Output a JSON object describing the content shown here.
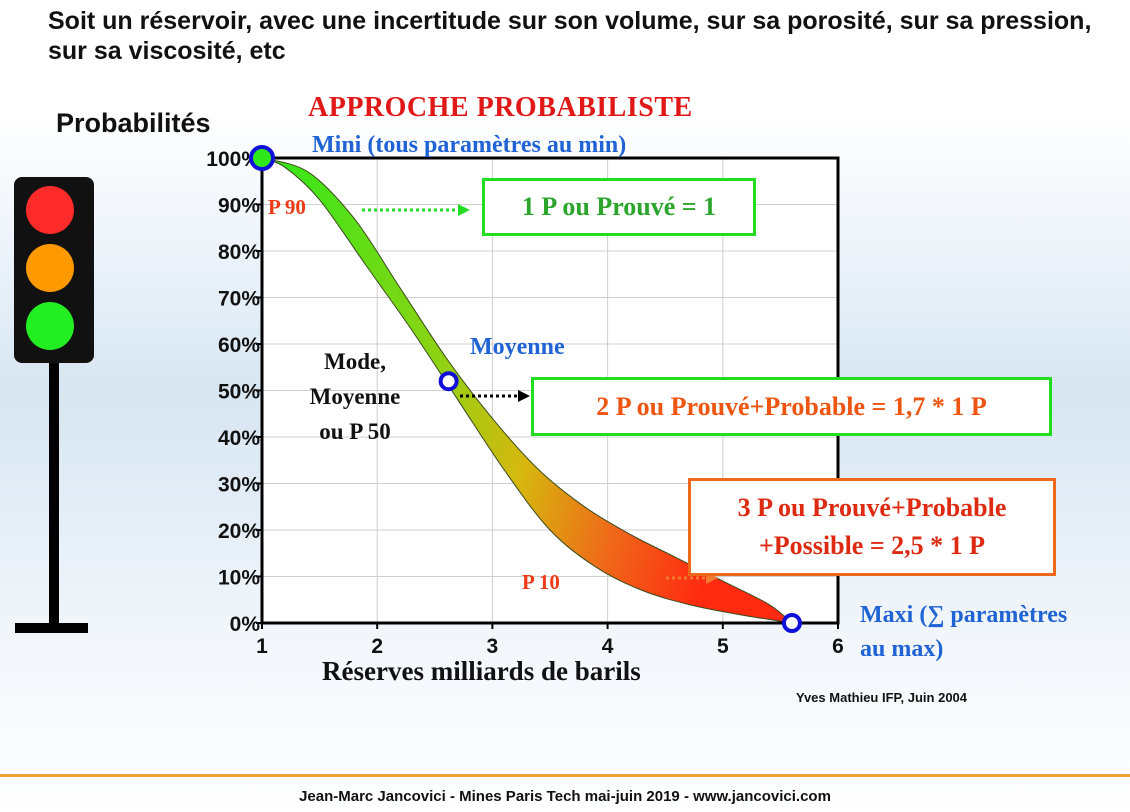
{
  "slide": {
    "heading": "Soit un réservoir, avec une incertitude sur son volume, sur sa porosité, sur sa pression, sur sa viscosité, etc",
    "approach_title": "APPROCHE PROBABILISTE",
    "credit": "Yves Mathieu IFP, Juin 2004",
    "footer": "Jean-Marc Jancovici - Mines Paris Tech mai-juin 2019 - www.jancovici.com",
    "colors": {
      "title_red": "#e01818",
      "label_blue": "#1f63d4",
      "green_box": "#22dd22",
      "orange_box": "#ee6a1a",
      "footer_line": "#f0a030"
    }
  },
  "traffic_light": {
    "icon": "traffic-light-icon",
    "lamps": [
      "#ff2a2a",
      "#ff9900",
      "#22ee22"
    ]
  },
  "annotations": {
    "mini": "Mini (tous paramètres au min)",
    "maxi_line1": "Maxi (∑ paramètres",
    "maxi_line2": "au max)",
    "moyenne": "Moyenne",
    "mode_line1": "Mode,",
    "mode_line2": "Moyenne",
    "mode_line3": "ou P 50",
    "p90": "P 90",
    "p10": "P 10"
  },
  "boxes": {
    "box1": "1 P ou Prouvé = 1",
    "box2": "2 P ou Prouvé+Probable = 1,7 * 1 P",
    "box3_line1": "3 P ou Prouvé+Probable",
    "box3_line2": "+Possible =  2,5 * 1 P"
  },
  "chart_data": {
    "type": "area",
    "ylabel": "Probabilités",
    "xlabel": "Réserves milliards de barils",
    "xlim": [
      1,
      6
    ],
    "ylim": [
      0,
      100
    ],
    "x_ticks": [
      "1",
      "2",
      "3",
      "4",
      "5",
      "6"
    ],
    "y_ticks": [
      "0%",
      "10%",
      "20%",
      "30%",
      "40%",
      "50%",
      "60%",
      "70%",
      "80%",
      "90%",
      "100%"
    ],
    "grid": true,
    "band_upper": {
      "x": [
        1.0,
        1.4,
        1.8,
        2.2,
        2.6,
        3.0,
        3.4,
        3.8,
        4.2,
        4.6,
        5.0,
        5.4,
        5.6
      ],
      "y": [
        100,
        97,
        87,
        72,
        57,
        44,
        33,
        25,
        19,
        14,
        9,
        4,
        0
      ]
    },
    "band_lower": {
      "x": [
        1.0,
        1.2,
        1.5,
        1.9,
        2.3,
        2.7,
        3.1,
        3.5,
        3.9,
        4.3,
        4.7,
        5.1,
        5.6
      ],
      "y": [
        100,
        98,
        91,
        77,
        63,
        48,
        33,
        20,
        12,
        7,
        4,
        2,
        0
      ]
    },
    "points": [
      {
        "name": "Mini",
        "x": 1.0,
        "y": 100
      },
      {
        "name": "Moyenne",
        "x": 2.62,
        "y": 52
      },
      {
        "name": "Maxi",
        "x": 5.6,
        "y": 0
      }
    ]
  }
}
